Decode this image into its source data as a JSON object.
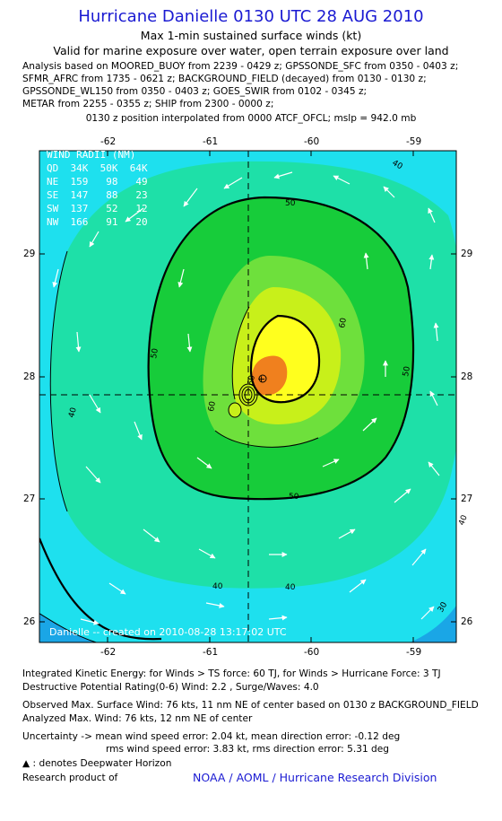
{
  "header": {
    "title": "Hurricane Danielle 0130 UTC 28 AUG 2010",
    "subtitle": "Max 1-min sustained surface winds (kt)",
    "validity": "Valid for marine exposure over water, open terrain exposure over land",
    "analysis_lines": [
      "Analysis based on MOORED_BUOY from 2239 - 0429 z; GPSSONDE_SFC from 0350 - 0403 z;",
      "SFMR_AFRC from 1735 - 0621 z; BACKGROUND_FIELD (decayed) from 0130 - 0130 z;",
      "GPSSONDE_WL150 from 0350 - 0403 z; GOES_SWIR from 0102 - 0345 z;",
      "METAR from 2255 - 0355 z; SHIP from 2300 - 0000 z;"
    ],
    "position_note": "0130 z position interpolated from 0000 ATCF_OFCL; mslp = 942.0 mb"
  },
  "map": {
    "lon_ticks": [
      "-62",
      "-61",
      "-60",
      "-59"
    ],
    "lat_ticks": [
      "29",
      "28",
      "27",
      "26"
    ],
    "contour_labels": [
      "40",
      "40",
      "40",
      "40",
      "40",
      "50",
      "50",
      "50",
      "50",
      "60",
      "60",
      "60",
      "30"
    ],
    "credit": "Danielle -- created on 2010-08-28 13:17:02 UTC",
    "fill_colors": [
      "#1aa6e6",
      "#1ee0ee",
      "#1ee0a8",
      "#17cc3a",
      "#6ee03c",
      "#c8f01a",
      "#ffff1e",
      "#f0801e"
    ]
  },
  "wind_radii": {
    "header": "WIND RADII (NM)",
    "columns": "QD  34K  50K  64K",
    "rows": [
      "NE  159   98   49",
      "SE  147   88   23",
      "SW  137   52   12",
      "NW  166   91   20"
    ]
  },
  "footer": {
    "ike": "Integrated Kinetic Energy:  for Winds > TS force: 60 TJ,  for Winds > Hurricane Force: 3 TJ",
    "dpr": "Destructive Potential Rating(0-6)   Wind: 2.2 , Surge/Waves: 4.0",
    "observed": "Observed Max. Surface Wind: 76 kts, 11 nm NE of center based on 0130 z BACKGROUND_FIELD",
    "analyzed": "Analyzed Max. Wind: 76 kts, 12 nm NE of center",
    "uncert1": "Uncertainty -> mean wind speed error: 2.04 kt,   mean direction error:  -0.12 deg",
    "uncert2": "rms wind speed error: 3.83 kt,   rms direction error: 5.31 deg",
    "deepwater": ": denotes Deepwater Horizon",
    "product": "Research product of",
    "org": "NOAA / AOML / Hurricane Research Division"
  }
}
